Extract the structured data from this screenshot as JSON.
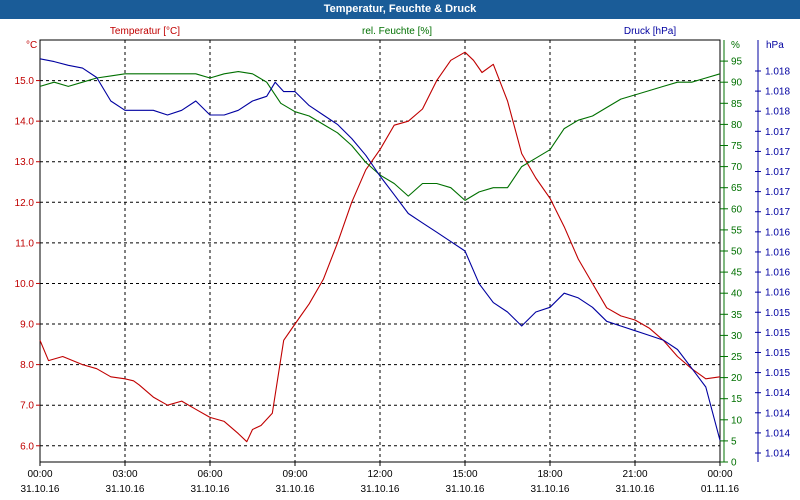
{
  "window": {
    "title": "Temperatur, Feuchte & Druck"
  },
  "colors": {
    "temperature": "#c00000",
    "humidity": "#007000",
    "pressure": "#0000a0",
    "grid": "#000000",
    "title_bg": "#1a5c98"
  },
  "chart_data": {
    "type": "line",
    "title": "Temperatur, Feuchte & Druck",
    "x_ticks": [
      "00:00",
      "03:00",
      "06:00",
      "09:00",
      "12:00",
      "15:00",
      "18:00",
      "21:00",
      "00:00"
    ],
    "x_dates": [
      "31.10.16",
      "31.10.16",
      "31.10.16",
      "31.10.16",
      "31.10.16",
      "31.10.16",
      "31.10.16",
      "31.10.16",
      "01.11.16"
    ],
    "xlim": [
      0,
      24
    ],
    "grid": true,
    "axes": {
      "temperature": {
        "label": "Temperatur [°C]",
        "unit": "°C",
        "ticks": [
          "6.0",
          "7.0",
          "8.0",
          "9.0",
          "10.0",
          "11.0",
          "12.0",
          "13.0",
          "14.0",
          "15.0"
        ],
        "ylim": [
          5.6,
          16.0
        ]
      },
      "humidity": {
        "label": "rel. Feuchte [%]",
        "unit": "%",
        "ticks": [
          "0",
          "5",
          "10",
          "15",
          "20",
          "25",
          "30",
          "35",
          "40",
          "45",
          "50",
          "55",
          "60",
          "65",
          "70",
          "75",
          "80",
          "85",
          "90",
          "95"
        ],
        "ylim": [
          0,
          100
        ]
      },
      "pressure": {
        "label": "Druck [hPa]",
        "unit": "hPa",
        "ticks": [
          "1.014",
          "1.014",
          "1.014",
          "1.014",
          "1.015",
          "1.015",
          "1.015",
          "1.015",
          "1.016",
          "1.016",
          "1.016",
          "1.016",
          "1.017",
          "1.017",
          "1.017",
          "1.017",
          "1.017",
          "1.018",
          "1.018",
          "1.018"
        ],
        "ylim": [
          1.01395,
          1.01845
        ]
      }
    },
    "series": [
      {
        "name": "Temperatur [°C]",
        "axis": "temperature",
        "x": [
          0,
          0.3,
          0.8,
          1.5,
          2,
          2.5,
          3,
          3.3,
          3.5,
          4,
          4.5,
          5,
          5.5,
          6,
          6.5,
          7,
          7.3,
          7.5,
          7.8,
          8.2,
          8.6,
          9,
          9.5,
          10,
          10.5,
          11,
          11.5,
          12,
          12.5,
          13,
          13.5,
          14,
          14.5,
          15,
          15.3,
          15.6,
          16,
          16.5,
          17,
          17.5,
          18,
          18.5,
          19,
          19.5,
          20,
          20.5,
          21,
          21.5,
          22,
          22.5,
          23,
          23.5,
          24
        ],
        "y": [
          8.6,
          8.1,
          8.2,
          8.0,
          7.9,
          7.7,
          7.65,
          7.6,
          7.5,
          7.2,
          7.0,
          7.1,
          6.9,
          6.7,
          6.6,
          6.3,
          6.1,
          6.4,
          6.5,
          6.8,
          8.6,
          9.0,
          9.5,
          10.1,
          11.0,
          12.0,
          12.8,
          13.3,
          13.9,
          14.0,
          14.3,
          15.0,
          15.5,
          15.7,
          15.5,
          15.2,
          15.4,
          14.5,
          13.2,
          12.6,
          12.1,
          11.4,
          10.6,
          10.0,
          9.4,
          9.2,
          9.1,
          8.9,
          8.6,
          8.2,
          7.9,
          7.65,
          7.7
        ]
      },
      {
        "name": "rel. Feuchte [%]",
        "axis": "humidity",
        "x": [
          0,
          0.5,
          1,
          1.5,
          2,
          2.5,
          3,
          3.5,
          4,
          4.5,
          5,
          5.5,
          6,
          6.5,
          7,
          7.5,
          8,
          8.5,
          9,
          9.5,
          10,
          10.5,
          11,
          11.5,
          12,
          12.5,
          13,
          13.5,
          14,
          14.5,
          15,
          15.5,
          16,
          16.5,
          17,
          17.5,
          18,
          18.5,
          19,
          19.5,
          20,
          20.5,
          21,
          21.5,
          22,
          22.5,
          23,
          23.5,
          24
        ],
        "y": [
          89,
          90,
          89,
          90,
          91,
          91.5,
          92,
          92,
          92,
          92,
          92,
          92,
          91,
          92,
          92.5,
          92,
          90,
          85,
          83,
          82,
          80,
          78,
          75,
          71,
          68,
          66,
          63,
          66,
          66,
          65,
          62,
          64,
          65,
          65,
          70,
          72,
          74,
          79,
          81,
          82,
          84,
          86,
          87,
          88,
          89,
          90,
          90,
          91,
          92
        ]
      },
      {
        "name": "Druck [hPa]",
        "axis": "pressure",
        "x": [
          0,
          0.5,
          1,
          1.5,
          2,
          2.5,
          3,
          3.5,
          4,
          4.5,
          5,
          5.5,
          6,
          6.5,
          7,
          7.5,
          8,
          8.3,
          8.6,
          9,
          9.5,
          10,
          10.5,
          11,
          11.5,
          12,
          12.5,
          13,
          13.5,
          14,
          14.5,
          15,
          15.5,
          16,
          16.5,
          17,
          17.5,
          18,
          18.5,
          19,
          19.5,
          20,
          20.5,
          21,
          21.5,
          22,
          22.5,
          23,
          23.5,
          24
        ],
        "y": [
          1.01825,
          1.01822,
          1.01818,
          1.01815,
          1.01805,
          1.0178,
          1.0177,
          1.0177,
          1.0177,
          1.01765,
          1.0177,
          1.0178,
          1.01765,
          1.01765,
          1.0177,
          1.0178,
          1.01785,
          1.018,
          1.0179,
          1.0179,
          1.01775,
          1.01765,
          1.01755,
          1.0174,
          1.01722,
          1.017,
          1.0168,
          1.0166,
          1.0165,
          1.0164,
          1.0163,
          1.0162,
          1.01585,
          1.01565,
          1.01555,
          1.0154,
          1.01555,
          1.0156,
          1.01575,
          1.0157,
          1.0156,
          1.01545,
          1.0154,
          1.01535,
          1.0153,
          1.01525,
          1.01515,
          1.01495,
          1.01475,
          1.01418
        ]
      }
    ]
  }
}
